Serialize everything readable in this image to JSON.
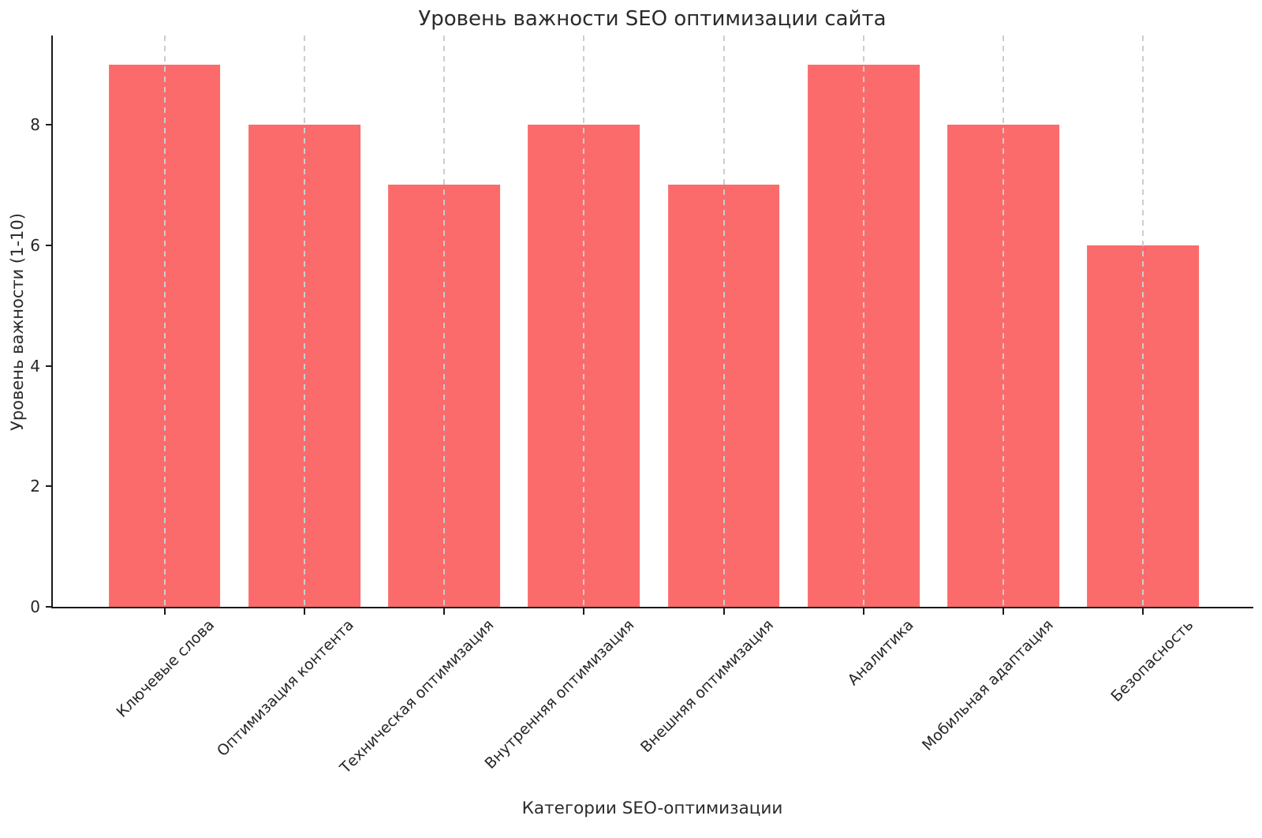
{
  "chart_data": {
    "type": "bar",
    "title": "Уровень важности SEO оптимизации сайта",
    "xlabel": "Категории SEO-оптимизации",
    "ylabel": "Уровень важности (1-10)",
    "categories": [
      "Ключевые слова",
      "Оптимизация контента",
      "Техническая оптимизация",
      "Внутренняя оптимизация",
      "Внешняя оптимизация",
      "Аналитика",
      "Мобильная адаптация",
      "Безопасность"
    ],
    "values": [
      9,
      8,
      7,
      8,
      7,
      9,
      8,
      6
    ],
    "ylim": [
      0,
      9.48
    ],
    "yticks": [
      0,
      2,
      4,
      6,
      8
    ],
    "bar_color": "#fb6b6b",
    "axis_color": "#1a1a1a",
    "grid_color": "#cdcdcd",
    "text_color": "#2b2b2b",
    "grid": "vertical-dashed",
    "legend": "none"
  }
}
